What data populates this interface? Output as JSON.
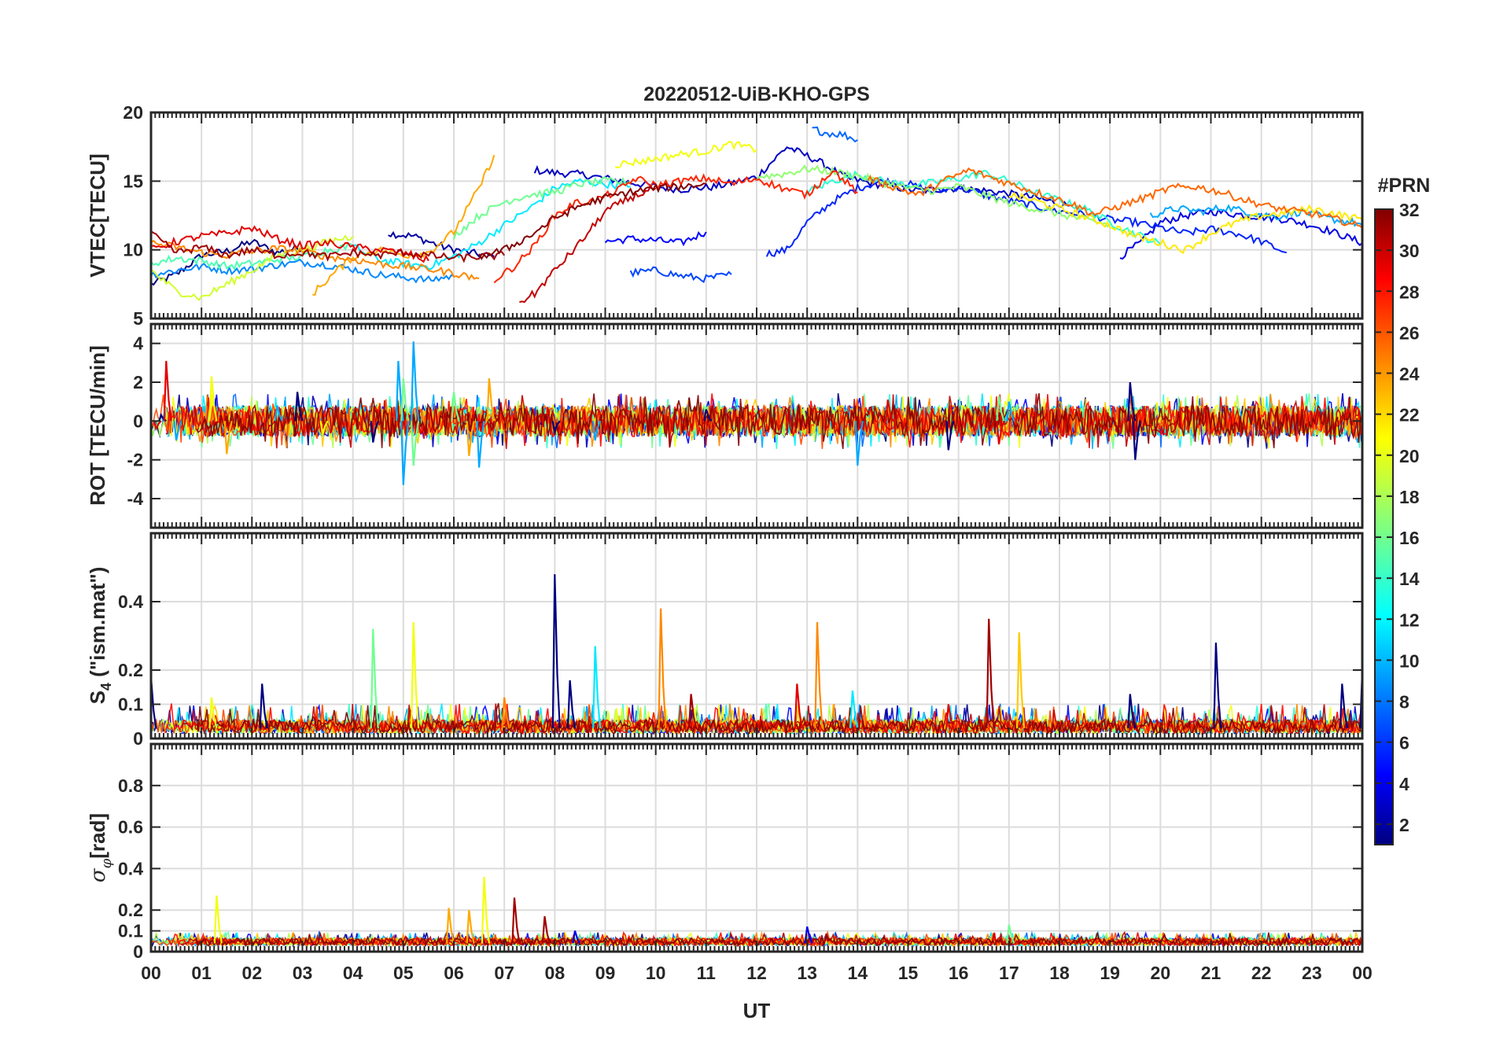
{
  "figure": {
    "title": "20220512-UiB-KHO-GPS",
    "xlabel": "UT",
    "x_ticks": [
      "00",
      "01",
      "02",
      "03",
      "04",
      "05",
      "06",
      "07",
      "08",
      "09",
      "10",
      "11",
      "12",
      "13",
      "14",
      "15",
      "16",
      "17",
      "18",
      "19",
      "20",
      "21",
      "22",
      "23",
      "00"
    ]
  },
  "colorbar": {
    "title": "#PRN",
    "range": [
      1,
      32
    ],
    "ticks": [
      "2",
      "4",
      "6",
      "8",
      "10",
      "12",
      "14",
      "16",
      "18",
      "20",
      "22",
      "24",
      "26",
      "28",
      "30",
      "32"
    ],
    "colormap": "jet"
  },
  "chart_data": [
    {
      "type": "line",
      "panel": "vtec",
      "ylabel": "VTEC[TECU]",
      "x_unit": "hours UT",
      "xlim": [
        0,
        24
      ],
      "ylim": [
        5,
        20
      ],
      "y_ticks": [
        "5",
        "10",
        "15",
        "20"
      ],
      "grid": true,
      "series_note": "one trace per GPS PRN, coloured by PRN",
      "series": [
        {
          "prn": 1,
          "x": [
            0,
            0.5,
            1,
            1.5,
            2,
            2.5,
            3
          ],
          "y": [
            7.5,
            8.2,
            9.6,
            9.9,
            10.6,
            9.8,
            10.2
          ]
        },
        {
          "prn": 2,
          "x": [
            4.7,
            5.2,
            5.8,
            6.3,
            6.8
          ],
          "y": [
            11.2,
            11.0,
            10.2,
            9.8,
            9.5
          ]
        },
        {
          "prn": 3,
          "x": [
            7.6,
            8,
            8.5,
            9,
            9.5,
            10,
            10.5,
            11.2,
            12,
            12.6,
            13.2,
            13.8,
            14.5,
            15.2,
            16,
            16.8,
            17.5,
            18.2
          ],
          "y": [
            15.8,
            15.6,
            15.5,
            15.2,
            14.9,
            14.6,
            14.4,
            14.6,
            15.3,
            17.5,
            16.5,
            15.2,
            14.7,
            14.3,
            14.5,
            14.2,
            13.8,
            13.2
          ]
        },
        {
          "prn": 4,
          "x": [
            19.2,
            19.6,
            20,
            20.5,
            21,
            21.5,
            22,
            22.5,
            23,
            23.5,
            24
          ],
          "y": [
            9.5,
            10.5,
            12.0,
            12.5,
            12.8,
            12.6,
            12.4,
            12.2,
            11.8,
            11.2,
            10.5
          ]
        },
        {
          "prn": 5,
          "x": [
            9,
            9.5,
            10,
            10.5,
            11
          ],
          "y": [
            10.6,
            10.8,
            10.7,
            10.5,
            11.3
          ]
        },
        {
          "prn": 6,
          "x": [
            12.2,
            12.6,
            13,
            13.5,
            14,
            14.5,
            15,
            15.5,
            16,
            16.5,
            17,
            17.5,
            18,
            18.5,
            19,
            19.5,
            20,
            20.5,
            21,
            21.5,
            22,
            22.5
          ],
          "y": [
            9.7,
            10.0,
            12.0,
            13.5,
            14.5,
            15.0,
            14.8,
            14.2,
            14.6,
            14.0,
            13.6,
            13.2,
            12.8,
            12.6,
            12.2,
            12.0,
            11.6,
            11.2,
            11.5,
            11.2,
            10.6,
            9.8
          ]
        },
        {
          "prn": 7,
          "x": [
            9.5,
            10,
            10.5,
            11,
            11.5
          ],
          "y": [
            8.3,
            8.5,
            8.1,
            7.9,
            8.2
          ]
        },
        {
          "prn": 8,
          "x": [
            13.1,
            13.4,
            13.7,
            14
          ],
          "y": [
            18.8,
            18.5,
            18.4,
            18.0
          ]
        },
        {
          "prn": 9,
          "x": [
            0,
            0.5,
            1,
            1.5,
            2,
            2.5,
            3,
            3.5,
            4,
            4.5,
            5,
            5.5,
            6
          ],
          "y": [
            8.2,
            8.5,
            8.8,
            8.5,
            8.6,
            8.9,
            9.1,
            8.9,
            8.6,
            8.2,
            8.0,
            7.8,
            8.1
          ]
        },
        {
          "prn": 10,
          "x": [
            19.8,
            20.3,
            20.8,
            21.3,
            21.8,
            22.3,
            22.8,
            23.3,
            23.8,
            24
          ],
          "y": [
            12.5,
            13.0,
            12.8,
            13.1,
            12.7,
            12.4,
            12.8,
            12.3,
            12.0,
            11.8
          ]
        },
        {
          "prn": 12,
          "x": [
            4,
            4.5,
            5,
            5.5,
            6,
            6.5,
            7,
            7.5,
            8,
            8.5,
            9,
            9.5
          ],
          "y": [
            10.2,
            9.3,
            9.0,
            8.8,
            9.5,
            10.5,
            11.8,
            13.0,
            14.5,
            15.0,
            14.8,
            14.6
          ]
        },
        {
          "prn": 14,
          "x": [
            13,
            13.5,
            14,
            14.5,
            15,
            15.5,
            16,
            16.5,
            17,
            17.5,
            18,
            18.5,
            19,
            19.5,
            20
          ],
          "y": [
            14.2,
            15.0,
            15.5,
            15.0,
            14.7,
            14.9,
            15.2,
            15.6,
            15.0,
            14.2,
            13.6,
            13.0,
            12.0,
            11.2,
            10.4
          ]
        },
        {
          "prn": 15,
          "x": [
            0,
            0.5,
            1,
            1.5,
            2,
            2.5,
            3,
            3.5,
            4
          ],
          "y": [
            9.0,
            9.4,
            9.2,
            8.8,
            9.0,
            9.3,
            9.5,
            10.0,
            10.3
          ]
        },
        {
          "prn": 16,
          "x": [
            6,
            6.5,
            7,
            7.5,
            8,
            8.5,
            9,
            9.5
          ],
          "y": [
            11.0,
            12.5,
            13.5,
            14.0,
            14.2,
            14.8,
            15.0,
            14.9
          ]
        },
        {
          "prn": 17,
          "x": [
            12,
            12.5,
            13,
            13.5,
            14,
            14.5,
            15,
            15.5,
            16,
            16.5,
            17,
            17.5,
            18,
            18.5,
            19
          ],
          "y": [
            15.3,
            15.5,
            15.9,
            15.7,
            15.4,
            14.9,
            14.5,
            14.3,
            14.6,
            14.0,
            13.4,
            13.0,
            12.6,
            12.2,
            11.8
          ]
        },
        {
          "prn": 19,
          "x": [
            0,
            0.5,
            1,
            1.5,
            2,
            2.5,
            3,
            3.5,
            4
          ],
          "y": [
            8.5,
            7.0,
            6.5,
            7.5,
            8.5,
            9.6,
            10.0,
            10.6,
            11.0
          ]
        },
        {
          "prn": 20,
          "x": [
            9.2,
            9.8,
            10.4,
            11,
            11.5,
            12
          ],
          "y": [
            16.2,
            16.5,
            16.9,
            17.2,
            17.7,
            17.3
          ]
        },
        {
          "prn": 21,
          "x": [
            17,
            17.5,
            18,
            18.5,
            19,
            19.5,
            20,
            20.5,
            21,
            21.5,
            22,
            22.5,
            23,
            23.5,
            24
          ],
          "y": [
            14.0,
            13.6,
            13.0,
            12.4,
            11.8,
            11.0,
            10.5,
            10.0,
            11.2,
            12.0,
            12.5,
            12.7,
            13.0,
            12.6,
            12.2
          ]
        },
        {
          "prn": 23,
          "x": [
            3.2,
            3.6,
            4,
            4.5,
            5,
            5.5,
            6,
            6.5,
            6.8
          ],
          "y": [
            6.8,
            8.2,
            9.5,
            10.0,
            9.6,
            9.8,
            11.3,
            14.5,
            16.9
          ]
        },
        {
          "prn": 24,
          "x": [
            0,
            0.5,
            1,
            1.5,
            2,
            2.5,
            3,
            3.5,
            4,
            4.5,
            5,
            5.5,
            6,
            6.5
          ],
          "y": [
            10.5,
            10.2,
            9.8,
            9.6,
            9.9,
            10.1,
            9.9,
            9.5,
            9.3,
            9.0,
            8.8,
            8.6,
            8.3,
            7.9
          ]
        },
        {
          "prn": 25,
          "x": [
            14.2,
            14.7,
            15.2,
            15.7,
            16.2,
            16.7,
            17.2,
            17.7,
            18.2,
            18.7,
            19.2,
            19.7,
            20.2,
            20.7,
            21.2,
            21.7,
            22.2,
            22.7,
            23.2,
            23.7,
            24
          ],
          "y": [
            15.2,
            14.6,
            14.0,
            15.0,
            15.8,
            15.2,
            14.6,
            14.0,
            13.4,
            12.6,
            13.2,
            13.8,
            14.5,
            14.6,
            14.2,
            13.6,
            13.1,
            12.8,
            12.5,
            12.0,
            11.6
          ]
        },
        {
          "prn": 27,
          "x": [
            6.8,
            7.2,
            7.6,
            8,
            8.4,
            8.8,
            9.2,
            9.6,
            10,
            10.5,
            11,
            11.5,
            12,
            12.5,
            13,
            13.5,
            14
          ],
          "y": [
            7.8,
            8.8,
            10.3,
            12.5,
            13.4,
            13.6,
            14.2,
            15.2,
            14.7,
            15.0,
            15.2,
            14.8,
            15.2,
            14.5,
            14.0,
            15.8,
            14.2
          ]
        },
        {
          "prn": 29,
          "x": [
            0,
            0.5,
            1,
            1.5,
            2,
            2.5,
            3,
            3.5,
            4,
            4.5,
            5,
            5.5
          ],
          "y": [
            10.0,
            10.6,
            11.0,
            11.2,
            11.6,
            10.8,
            10.3,
            10.5,
            10.2,
            10.0,
            9.8,
            9.2
          ]
        },
        {
          "prn": 30,
          "x": [
            7.3,
            7.6,
            8,
            8.5,
            9,
            9.5,
            10
          ],
          "y": [
            6.2,
            6.8,
            8.5,
            10.5,
            12.8,
            13.8,
            14.5
          ]
        },
        {
          "prn": 31,
          "x": [
            0,
            0.2,
            0.5,
            1,
            1.5,
            2,
            2.5,
            3,
            3.5,
            4,
            4.5,
            5,
            5.5,
            6,
            6.5,
            7
          ],
          "y": [
            11.2,
            10.6,
            9.8,
            10.2,
            9.6,
            10.0,
            9.6,
            9.8,
            9.5,
            9.8,
            9.6,
            9.8,
            9.6,
            9.4,
            9.5,
            9.6
          ]
        },
        {
          "prn": 32,
          "x": [
            6.5,
            7,
            7.5,
            8,
            8.5,
            9,
            9.5,
            10,
            10.5,
            11
          ],
          "y": [
            9.5,
            10.0,
            11.0,
            12.3,
            13.2,
            13.8,
            14.2,
            14.5,
            14.6,
            14.8
          ]
        }
      ]
    },
    {
      "type": "line",
      "panel": "rot",
      "ylabel": "ROT [TECU/min]",
      "xlim": [
        0,
        24
      ],
      "ylim": [
        -5.5,
        5
      ],
      "y_ticks": [
        "-4",
        "-2",
        "0",
        "2",
        "4"
      ],
      "grid": true,
      "series_note": "rate of TEC per PRN, noisy around 0 (typ. ±1 TECU/min)",
      "series": [
        {
          "prn": 1,
          "x": [
            0.2,
            2.9,
            4.4,
            8,
            11,
            15.8,
            19.4,
            19.5
          ],
          "y": [
            0.3,
            1.5,
            -1.1,
            -0.5,
            0.6,
            -1.5,
            2.0,
            -2.0
          ]
        },
        {
          "prn": 10,
          "x": [
            0.5,
            2.5,
            4.9,
            5.0,
            5.2,
            6.5,
            8.8,
            14,
            17
          ],
          "y": [
            -1.0,
            0.8,
            3.1,
            -3.3,
            4.1,
            -2.4,
            -1.0,
            -2.3,
            1.0
          ]
        },
        {
          "prn": 16,
          "x": [
            5.0,
            5.2,
            6.0,
            16.8
          ],
          "y": [
            2.2,
            -2.3,
            1.5,
            1.3
          ]
        },
        {
          "prn": 20,
          "x": [
            1.2,
            3.4
          ],
          "y": [
            2.3,
            -0.7
          ]
        },
        {
          "prn": 23,
          "x": [
            1.5,
            6.3,
            6.7
          ],
          "y": [
            -1.7,
            -1.8,
            2.2
          ]
        },
        {
          "prn": 29,
          "x": [
            0.1,
            0.3,
            14.6,
            16.8
          ],
          "y": [
            -0.4,
            3.1,
            1.1,
            -1.2
          ]
        }
      ]
    },
    {
      "type": "line",
      "panel": "s4",
      "ylabel": "S4 (\"ism.mat\")",
      "xlim": [
        0,
        24
      ],
      "ylim": [
        0,
        0.6
      ],
      "y_ticks": [
        "0",
        "0.1",
        "0.2",
        "0.4"
      ],
      "grid": true,
      "series_note": "amplitude scintillation index per PRN, baseline ~0.02-0.05 with spikes",
      "series": [
        {
          "prn": 1,
          "x": [
            0,
            2.2,
            8.0,
            8.3,
            19.4,
            21.1,
            23.6,
            24
          ],
          "y": [
            0.18,
            0.16,
            0.48,
            0.17,
            0.13,
            0.28,
            0.16,
            0.2
          ]
        },
        {
          "prn": 12,
          "x": [
            8.8,
            13.9
          ],
          "y": [
            0.27,
            0.14
          ]
        },
        {
          "prn": 16,
          "x": [
            4.4
          ],
          "y": [
            0.32
          ]
        },
        {
          "prn": 20,
          "x": [
            5.2,
            1.2
          ],
          "y": [
            0.34,
            0.12
          ]
        },
        {
          "prn": 22,
          "x": [
            17.2
          ],
          "y": [
            0.31
          ]
        },
        {
          "prn": 24,
          "x": [
            10.1,
            13.2,
            7.0
          ],
          "y": [
            0.38,
            0.34,
            0.12
          ]
        },
        {
          "prn": 29,
          "x": [
            12.8,
            15.8
          ],
          "y": [
            0.16,
            0.1
          ]
        },
        {
          "prn": 31,
          "x": [
            16.6,
            10.7
          ],
          "y": [
            0.35,
            0.13
          ]
        }
      ]
    },
    {
      "type": "line",
      "panel": "sigma_phi",
      "ylabel": "σφ[rad]",
      "xlim": [
        0,
        24
      ],
      "ylim": [
        0,
        1
      ],
      "y_ticks": [
        "0",
        "0.1",
        "0.2",
        "0.4",
        "0.6",
        "0.8"
      ],
      "grid": true,
      "series_note": "phase scintillation index per PRN, baseline ~0.03-0.06 with spikes",
      "series": [
        {
          "prn": 20,
          "x": [
            1.3,
            6.6
          ],
          "y": [
            0.27,
            0.36
          ]
        },
        {
          "prn": 23,
          "x": [
            5.9,
            6.3
          ],
          "y": [
            0.21,
            0.2
          ]
        },
        {
          "prn": 31,
          "x": [
            7.2,
            7.8
          ],
          "y": [
            0.26,
            0.17
          ]
        },
        {
          "prn": 16,
          "x": [
            17.0
          ],
          "y": [
            0.13
          ]
        },
        {
          "prn": 4,
          "x": [
            8.4,
            13.0
          ],
          "y": [
            0.1,
            0.12
          ]
        }
      ]
    }
  ]
}
